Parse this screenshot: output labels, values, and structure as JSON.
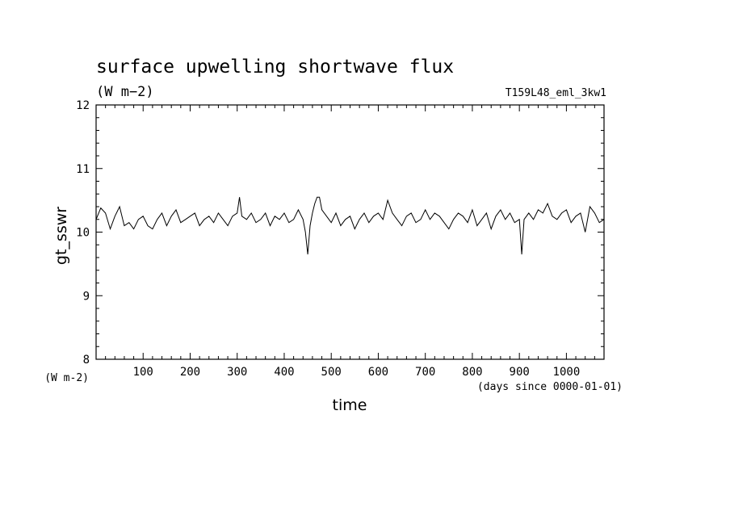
{
  "chart_data": {
    "type": "line",
    "title": "surface upwelling shortwave flux",
    "title_units": "(W m−2)",
    "experiment": "T159L48_eml_3kw1",
    "ylabel": "gt_sswr",
    "ylabel_units": "(W m-2)",
    "xlabel": "time",
    "xlabel_units": "(days since 0000-01-01)",
    "xlim": [
      0,
      1080
    ],
    "ylim": [
      8,
      12
    ],
    "x_ticks": [
      "100",
      "200",
      "300",
      "400",
      "500",
      "600",
      "700",
      "800",
      "900",
      "1000"
    ],
    "y_ticks": [
      "8",
      "9",
      "10",
      "11",
      "12"
    ],
    "grid": false,
    "legend": "none",
    "line_color": "#000000",
    "series": [
      {
        "x": [
          0,
          10,
          20,
          30,
          40,
          50,
          60,
          70,
          80,
          90,
          100,
          110,
          120,
          130,
          140,
          150,
          160,
          170,
          180,
          190,
          200,
          210,
          220,
          230,
          240,
          250,
          260,
          270,
          280,
          290,
          300,
          305,
          310,
          320,
          330,
          340,
          350,
          360,
          370,
          380,
          390,
          400,
          410,
          420,
          430,
          440,
          445,
          450,
          455,
          460,
          465,
          470,
          475,
          480,
          490,
          500,
          510,
          520,
          530,
          540,
          550,
          560,
          570,
          580,
          590,
          600,
          610,
          620,
          630,
          640,
          650,
          660,
          670,
          680,
          690,
          700,
          710,
          720,
          730,
          740,
          750,
          760,
          770,
          780,
          790,
          800,
          810,
          820,
          830,
          840,
          850,
          860,
          870,
          880,
          890,
          900,
          905,
          910,
          920,
          930,
          940,
          950,
          960,
          970,
          980,
          990,
          1000,
          1010,
          1020,
          1030,
          1040,
          1050,
          1060,
          1070,
          1080
        ],
        "y": [
          10.2,
          10.38,
          10.3,
          10.05,
          10.25,
          10.4,
          10.1,
          10.15,
          10.05,
          10.2,
          10.25,
          10.1,
          10.05,
          10.2,
          10.3,
          10.1,
          10.25,
          10.35,
          10.15,
          10.2,
          10.25,
          10.3,
          10.1,
          10.2,
          10.25,
          10.15,
          10.3,
          10.2,
          10.1,
          10.25,
          10.3,
          10.55,
          10.25,
          10.2,
          10.3,
          10.15,
          10.2,
          10.3,
          10.1,
          10.25,
          10.2,
          10.3,
          10.15,
          10.2,
          10.35,
          10.2,
          10.0,
          9.65,
          10.1,
          10.3,
          10.45,
          10.55,
          10.55,
          10.35,
          10.25,
          10.15,
          10.3,
          10.1,
          10.2,
          10.25,
          10.05,
          10.2,
          10.3,
          10.15,
          10.25,
          10.3,
          10.2,
          10.5,
          10.3,
          10.2,
          10.1,
          10.25,
          10.3,
          10.15,
          10.2,
          10.35,
          10.2,
          10.3,
          10.25,
          10.15,
          10.05,
          10.2,
          10.3,
          10.25,
          10.15,
          10.35,
          10.1,
          10.2,
          10.3,
          10.05,
          10.25,
          10.35,
          10.2,
          10.3,
          10.15,
          10.2,
          9.65,
          10.2,
          10.3,
          10.2,
          10.35,
          10.3,
          10.45,
          10.25,
          10.2,
          10.3,
          10.35,
          10.15,
          10.25,
          10.3,
          10.0,
          10.4,
          10.3,
          10.15,
          10.2
        ]
      }
    ]
  }
}
